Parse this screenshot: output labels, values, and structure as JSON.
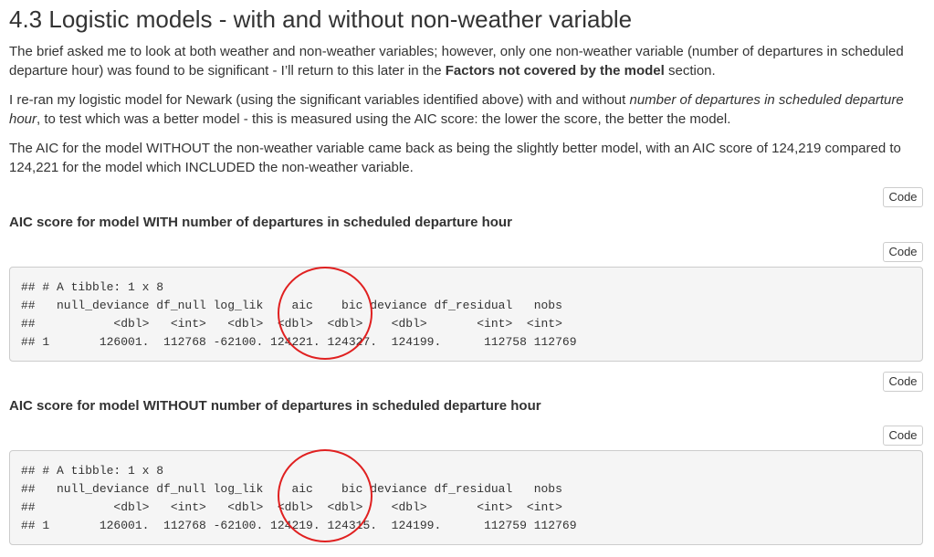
{
  "section": {
    "heading": "4.3 Logistic models - with and without non-weather variable",
    "paragraphs": {
      "p1_part1": "The brief asked me to look at both weather and non-weather variables; however, only one non-weather variable (number of departures in scheduled departure hour) was found to be significant - I’ll return to this later in the ",
      "p1_bold": "Factors not covered by the model",
      "p1_part2": " section.",
      "p2_part1": "I re-ran my logistic model for Newark (using the significant variables identified above) with and without ",
      "p2_italic": "number of departures in scheduled departure hour",
      "p2_part2": ", to test which was a better model - this is measured using the AIC score: the lower the score, the better the model.",
      "p3": "The AIC for the model WITHOUT the non-weather variable came back as being the slightly better model, with an AIC score of 124,219 compared to 124,221 for the model which INCLUDED the non-weather variable."
    }
  },
  "buttons": {
    "code_label": "Code"
  },
  "model_with": {
    "heading": "AIC score for model WITH number of departures in scheduled departure hour",
    "output": [
      "## # A tibble: 1 x 8",
      "##   null_deviance df_null log_lik    aic    bic deviance df_residual   nobs",
      "##           <dbl>   <int>   <dbl>  <dbl>  <dbl>    <dbl>       <int>  <int>",
      "## 1       126001.  112768 -62100. 124221. 124327.  124199.      112758 112769"
    ]
  },
  "model_without": {
    "heading": "AIC score for model WITHOUT number of departures in scheduled departure hour",
    "output": [
      "## # A tibble: 1 x 8",
      "##   null_deviance df_null log_lik    aic    bic deviance df_residual   nobs",
      "##           <dbl>   <int>   <dbl>  <dbl>  <dbl>    <dbl>       <int>  <int>",
      "## 1       126001.  112768 -62100. 124219. 124315.  124199.      112759 112769"
    ]
  },
  "annotation_color": "#e02020"
}
